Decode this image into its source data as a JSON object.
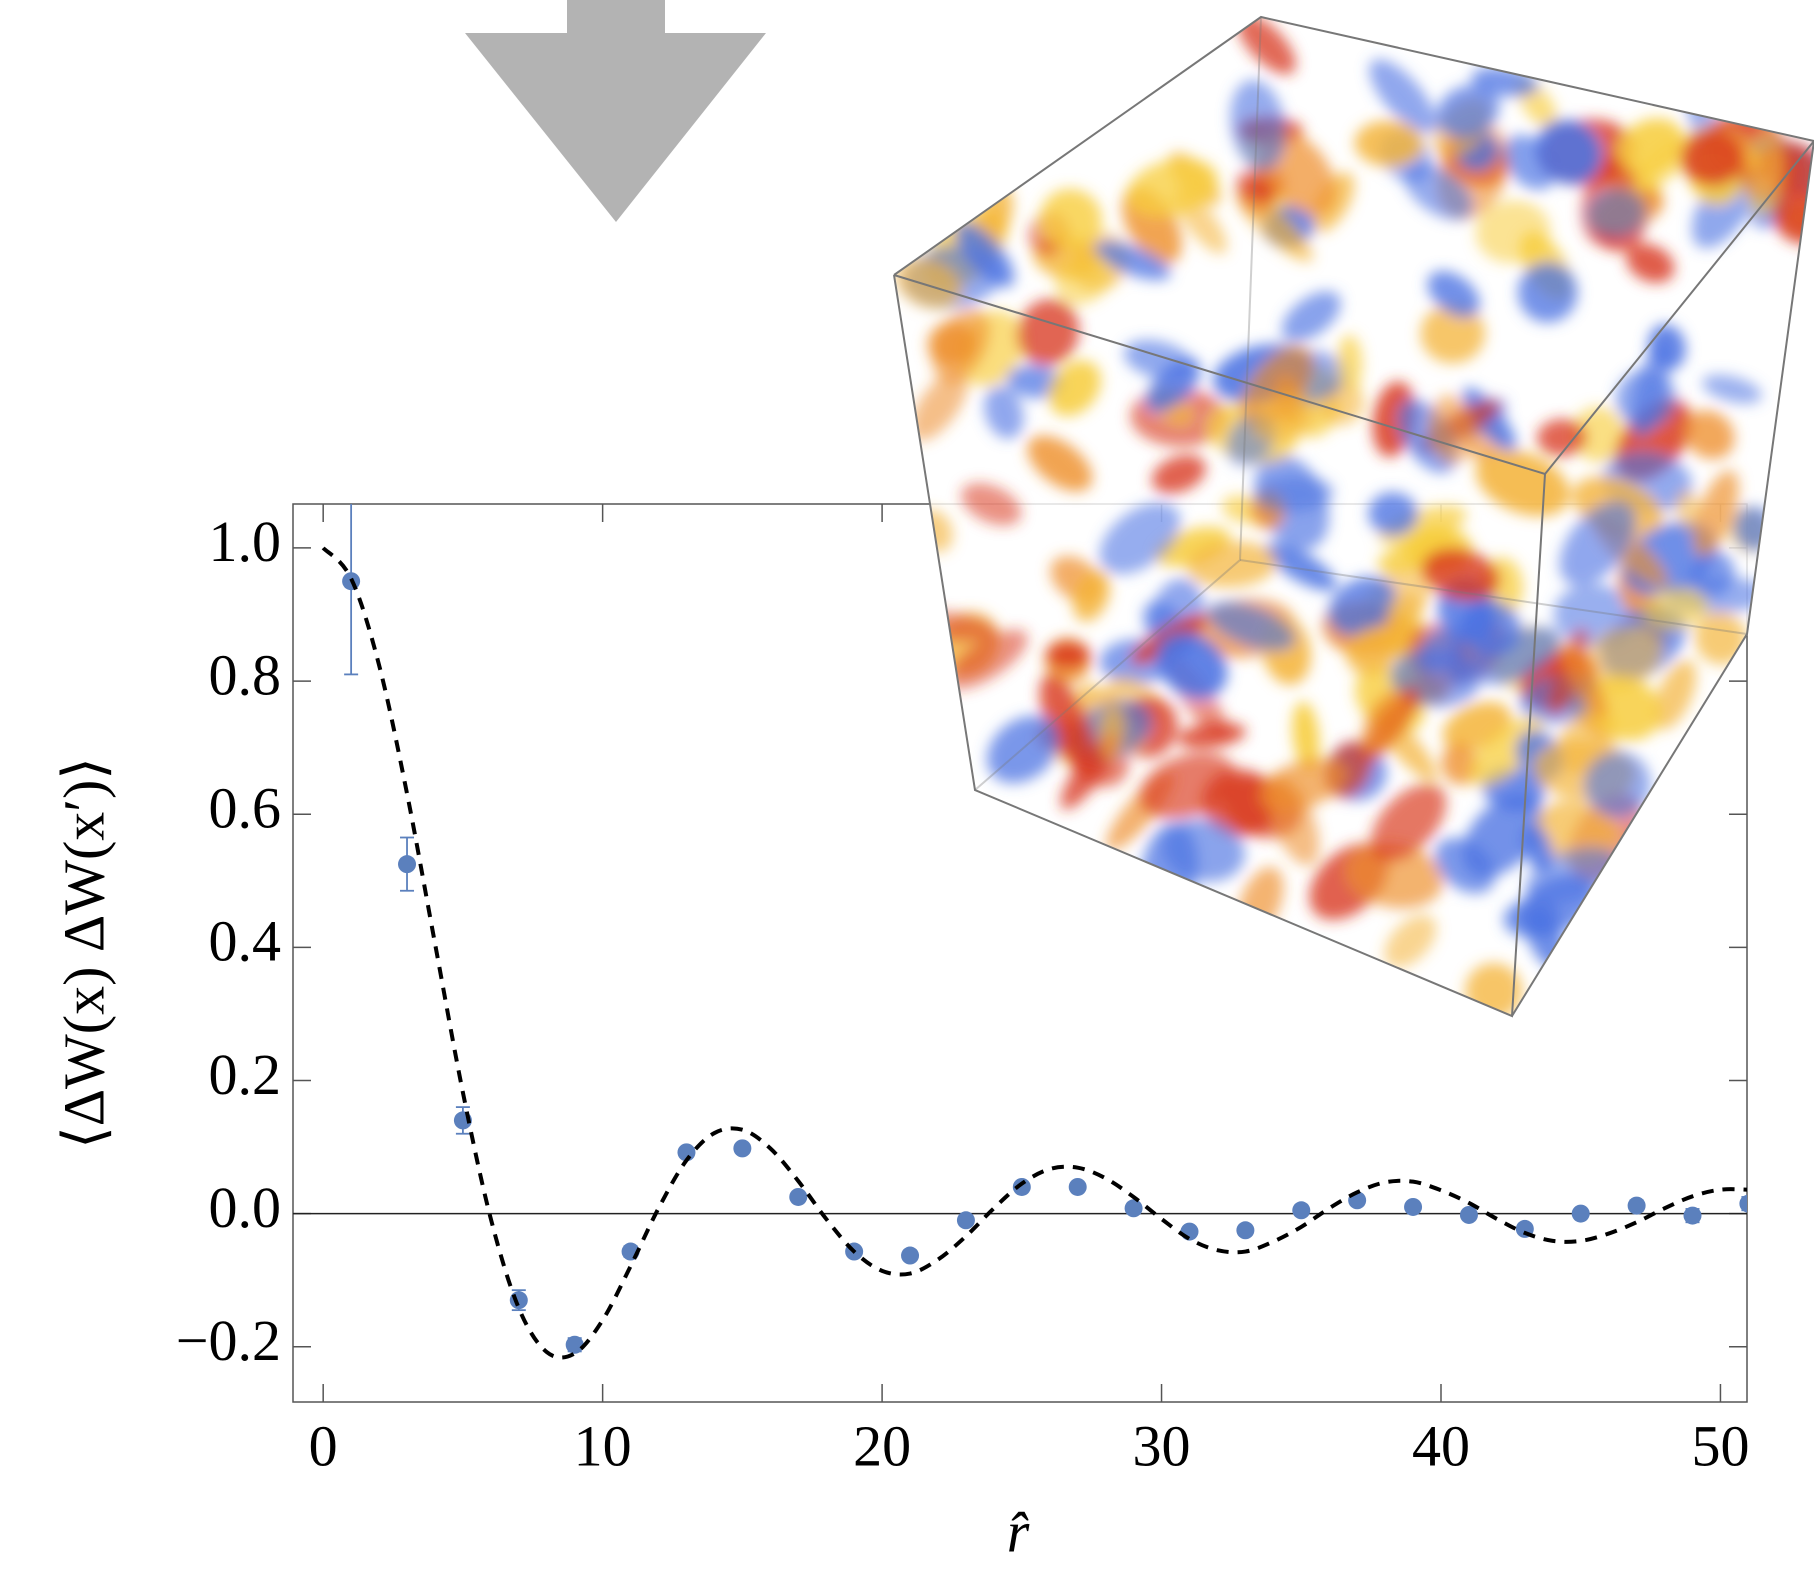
{
  "chart_data": {
    "type": "scatter",
    "y_label": "⟨ΔW(x) ΔW(x′)⟩",
    "x_label": "r̂",
    "xlim": [
      -1.08,
      50.95
    ],
    "ylim": [
      -0.283,
      1.066
    ],
    "xticks": [
      0,
      10,
      20,
      30,
      40,
      50
    ],
    "yticks": [
      {
        "value": -0.2,
        "label": "−0.2"
      },
      {
        "value": 0.0,
        "label": "0.0"
      },
      0.2,
      0.4,
      0.6,
      0.8,
      {
        "value": 1.0,
        "label": "1.0"
      }
    ],
    "zero_line": true,
    "series": [
      {
        "type": "scatter",
        "color": "#5b80bd",
        "x": [
          1,
          3,
          5,
          7,
          9,
          11,
          13,
          15,
          17,
          19,
          21,
          23,
          25,
          27,
          29,
          31,
          33,
          35,
          37,
          39,
          41,
          43,
          45,
          47,
          49,
          51
        ],
        "values": [
          0.95,
          0.525,
          0.14,
          -0.13,
          -0.197,
          -0.057,
          0.092,
          0.098,
          0.025,
          -0.057,
          -0.063,
          -0.01,
          0.04,
          0.04,
          0.008,
          -0.027,
          -0.025,
          0.005,
          0.02,
          0.01,
          -0.002,
          -0.023,
          0.0,
          0.012,
          -0.003,
          0.015
        ],
        "errors": [
          0.14,
          0.04,
          0.02,
          0.015,
          0.01,
          0.008,
          0.007,
          0.006,
          0.006,
          0.006,
          0.006,
          0.006,
          0.006,
          0.006,
          0.006,
          0.006,
          0.006,
          0.006,
          0.006,
          0.006,
          0.006,
          0.006,
          0.006,
          0.008,
          0.01,
          0.01
        ]
      },
      {
        "type": "line",
        "color": "#000000",
        "dashed": true,
        "x": [
          0,
          1,
          2,
          3,
          4,
          5,
          6,
          7,
          8,
          9,
          10,
          11,
          12,
          13,
          14,
          15,
          16,
          17,
          18,
          19,
          20,
          21,
          22,
          23,
          24,
          25,
          26,
          27,
          28,
          29,
          30,
          31,
          32,
          33,
          34,
          35,
          36,
          37,
          38,
          39,
          40,
          41,
          42,
          43,
          44,
          45,
          46,
          47,
          48,
          49,
          50,
          51
        ],
        "values": [
          1,
          0.954,
          0.824,
          0.631,
          0.406,
          0.182,
          -0.008,
          -0.142,
          -0.208,
          -0.21,
          -0.16,
          -0.079,
          0.008,
          0.08,
          0.121,
          0.126,
          0.098,
          0.049,
          -0.008,
          -0.057,
          -0.086,
          -0.09,
          -0.069,
          -0.034,
          0.008,
          0.045,
          0.067,
          0.069,
          0.053,
          0.025,
          -0.008,
          -0.038,
          -0.055,
          -0.057,
          -0.042,
          -0.02,
          0.008,
          0.032,
          0.047,
          0.048,
          0.035,
          0.016,
          -0.008,
          -0.029,
          -0.041,
          -0.041,
          -0.03,
          -0.013,
          0.008,
          0.026,
          0.036,
          0.036
        ]
      }
    ]
  }
}
